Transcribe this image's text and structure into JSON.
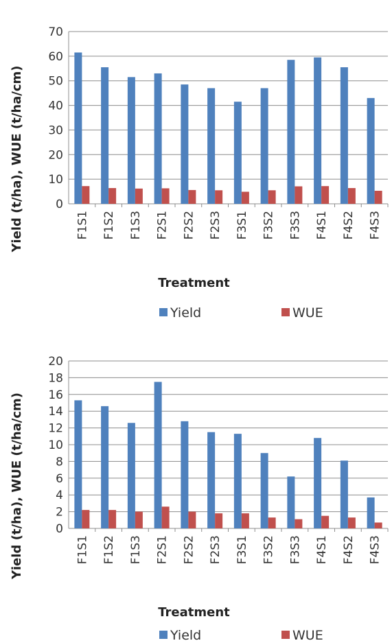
{
  "chart_data": [
    {
      "type": "bar",
      "title": "",
      "xlabel": "Treatment",
      "ylabel": "Yield (t/ha), WUE (t/ha/cm)",
      "ylim": [
        0,
        70
      ],
      "yticks": [
        0,
        10,
        20,
        30,
        40,
        50,
        60,
        70
      ],
      "grid": true,
      "legend": "bottom",
      "categories": [
        "F1S1",
        "F1S2",
        "F1S3",
        "F2S1",
        "F2S2",
        "F2S3",
        "F3S1",
        "F3S2",
        "F3S3",
        "F4S1",
        "F4S2",
        "F4S3"
      ],
      "series": [
        {
          "name": "Yield",
          "color": "#4f81bd",
          "values": [
            61.5,
            55.5,
            51.5,
            53,
            48.5,
            47,
            41.5,
            47,
            58.5,
            59.5,
            55.5,
            43
          ]
        },
        {
          "name": "WUE",
          "color": "#c0504d",
          "values": [
            7.2,
            6.4,
            6.2,
            6.3,
            5.6,
            5.5,
            4.9,
            5.5,
            7.1,
            7.2,
            6.4,
            5.3
          ]
        }
      ]
    },
    {
      "type": "bar",
      "title": "",
      "xlabel": "Treatment",
      "ylabel": "Yield (t/ha), WUE (t/ha/cm)",
      "ylim": [
        0,
        20
      ],
      "yticks": [
        0,
        2,
        4,
        6,
        8,
        10,
        12,
        14,
        16,
        18,
        20
      ],
      "grid": true,
      "legend": "bottom",
      "categories": [
        "F1S1",
        "F1S2",
        "F1S3",
        "F2S1",
        "F2S2",
        "F2S3",
        "F3S1",
        "F3S2",
        "F3S3",
        "F4S1",
        "F4S2",
        "F4S3"
      ],
      "series": [
        {
          "name": "Yield",
          "color": "#4f81bd",
          "values": [
            15.3,
            14.6,
            12.6,
            17.5,
            12.8,
            11.5,
            11.3,
            9.0,
            6.2,
            10.8,
            8.1,
            3.7
          ]
        },
        {
          "name": "WUE",
          "color": "#c0504d",
          "values": [
            2.2,
            2.2,
            2.0,
            2.6,
            2.0,
            1.8,
            1.8,
            1.3,
            1.1,
            1.5,
            1.3,
            0.7
          ]
        }
      ]
    }
  ]
}
